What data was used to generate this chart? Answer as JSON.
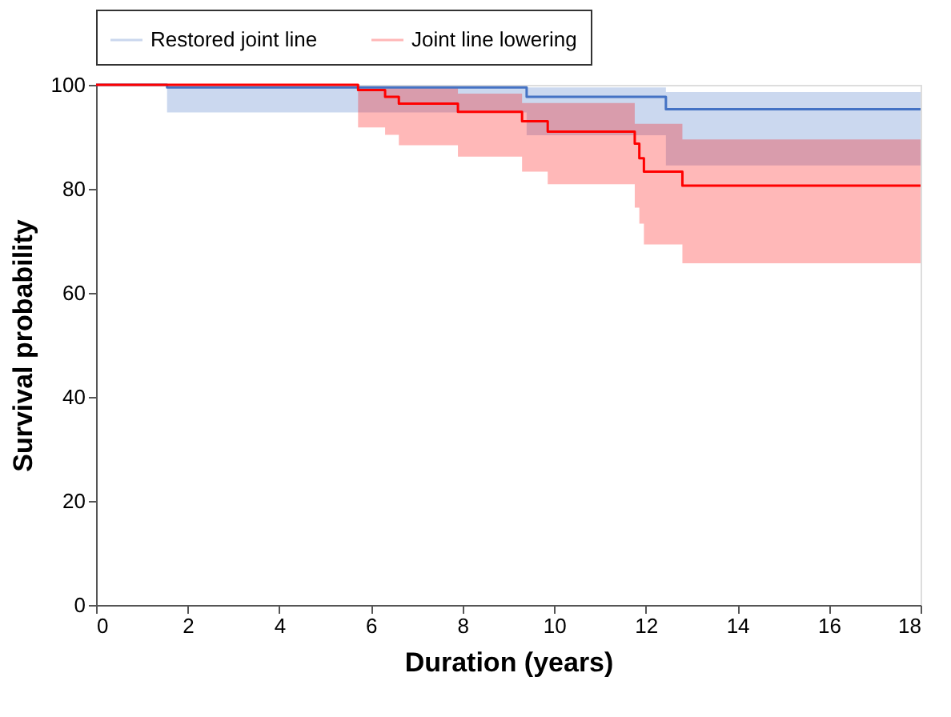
{
  "chart_data": {
    "type": "step",
    "xlabel": "Duration (years)",
    "ylabel": "Survival probability",
    "xlim": [
      0,
      18
    ],
    "xticks": [
      0,
      2,
      4,
      6,
      8,
      10,
      12,
      14,
      16,
      18
    ],
    "ylim": [
      0,
      100
    ],
    "yticks": [
      0,
      20,
      40,
      60,
      80,
      100
    ],
    "grid": false,
    "legend": "top",
    "line_style": "solid",
    "marker": "none",
    "series": [
      {
        "name": "Restored joint line",
        "color": "#4472c4",
        "x": [
          0,
          1.55,
          9.4,
          12.44,
          18
        ],
        "values": [
          100,
          99.5,
          97.7,
          95.3,
          95.3
        ],
        "lower": [
          100,
          94.7,
          90.3,
          84.5,
          84.5
        ],
        "upper": [
          100,
          99.7,
          99.5,
          98.6,
          98.6
        ]
      },
      {
        "name": "Joint line lowering",
        "color": "#ff0000",
        "x": [
          0,
          5.72,
          6.31,
          6.61,
          7.9,
          9.3,
          9.86,
          11.76,
          11.86,
          11.96,
          12.8,
          18
        ],
        "values": [
          100,
          99.0,
          97.7,
          96.4,
          94.8,
          93.0,
          91.0,
          88.7,
          85.9,
          83.3,
          80.6,
          80.6
        ],
        "lower": [
          100,
          91.8,
          90.4,
          88.4,
          86.2,
          83.3,
          80.9,
          76.4,
          73.3,
          69.3,
          65.7,
          65.7
        ],
        "upper": [
          100,
          99.7,
          99.7,
          99.7,
          98.3,
          96.5,
          96.5,
          92.5,
          92.5,
          92.5,
          89.5,
          89.5
        ]
      }
    ]
  }
}
